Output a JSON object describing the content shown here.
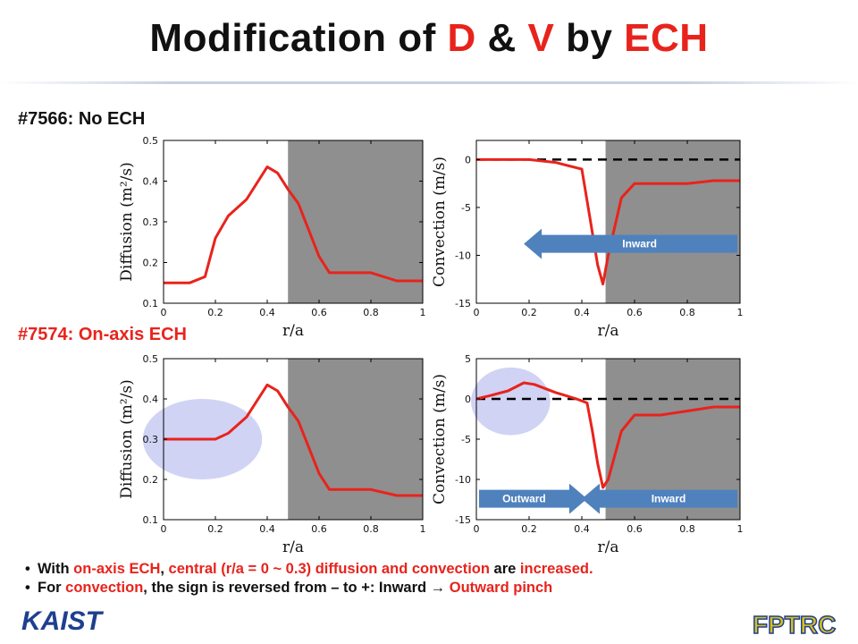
{
  "title": {
    "prefix": "Modification of ",
    "d": "D",
    "amp": " & ",
    "v": "V",
    "by": " by ",
    "ech": "ECH"
  },
  "sections": {
    "top_label": "#7566: No ECH",
    "bottom_label": "#7574: On-axis ECH"
  },
  "colors": {
    "curve": "#e8231c",
    "shade": "#8f8f8f",
    "arrow": "#4f81bd",
    "ellipse": "#c8cbf2",
    "accent": "#e8231c"
  },
  "chart_data": [
    {
      "id": "top-diffusion",
      "type": "line",
      "xlabel": "r/a",
      "ylabel": "Diffusion (m²/s)",
      "xlim": [
        0,
        1
      ],
      "ylim": [
        0.1,
        0.5
      ],
      "xticks": [
        "0",
        "0.2",
        "0.4",
        "0.6",
        "0.8",
        "1"
      ],
      "yticks": [
        "0.1",
        "0.2",
        "0.3",
        "0.4",
        "0.5"
      ],
      "shaded_from": 0.48,
      "series": [
        {
          "x": [
            0,
            0.1,
            0.16,
            0.2,
            0.25,
            0.32,
            0.4,
            0.44,
            0.48,
            0.52,
            0.56,
            0.6,
            0.64,
            0.7,
            0.8,
            0.9,
            1.0
          ],
          "y": [
            0.15,
            0.15,
            0.165,
            0.26,
            0.315,
            0.355,
            0.435,
            0.42,
            0.38,
            0.345,
            0.28,
            0.215,
            0.175,
            0.175,
            0.175,
            0.155,
            0.155
          ]
        }
      ],
      "zero_line": false,
      "arrows": [],
      "highlight": false
    },
    {
      "id": "top-convection",
      "type": "line",
      "xlabel": "r/a",
      "ylabel": "Convection (m/s)",
      "xlim": [
        0,
        1
      ],
      "ylim": [
        -15,
        2
      ],
      "xticks": [
        "0",
        "0.2",
        "0.4",
        "0.6",
        "0.8",
        "1"
      ],
      "yticks": [
        "0",
        "-5",
        "-10",
        "-15"
      ],
      "shaded_from": 0.49,
      "series": [
        {
          "x": [
            0,
            0.1,
            0.2,
            0.3,
            0.4,
            0.43,
            0.46,
            0.48,
            0.5,
            0.55,
            0.6,
            0.7,
            0.8,
            0.9,
            1.0
          ],
          "y": [
            0,
            0,
            0,
            -0.3,
            -1,
            -6,
            -11,
            -13,
            -10,
            -4,
            -2.5,
            -2.5,
            -2.5,
            -2.2,
            -2.2
          ]
        }
      ],
      "zero_line": true,
      "arrows": [
        {
          "label": "Inward",
          "dir": "left",
          "x0": 0.18,
          "x1": 0.99,
          "y": -8.8
        }
      ],
      "highlight": false
    },
    {
      "id": "bottom-diffusion",
      "type": "line",
      "xlabel": "r/a",
      "ylabel": "Diffusion (m²/s)",
      "xlim": [
        0,
        1
      ],
      "ylim": [
        0.1,
        0.5
      ],
      "xticks": [
        "0",
        "0.2",
        "0.4",
        "0.6",
        "0.8",
        "1"
      ],
      "yticks": [
        "0.1",
        "0.2",
        "0.3",
        "0.4",
        "0.5"
      ],
      "shaded_from": 0.48,
      "series": [
        {
          "x": [
            0,
            0.1,
            0.2,
            0.25,
            0.32,
            0.4,
            0.44,
            0.48,
            0.52,
            0.56,
            0.6,
            0.64,
            0.7,
            0.8,
            0.9,
            1.0
          ],
          "y": [
            0.3,
            0.3,
            0.3,
            0.315,
            0.355,
            0.435,
            0.42,
            0.38,
            0.345,
            0.28,
            0.215,
            0.175,
            0.175,
            0.175,
            0.16,
            0.16
          ]
        }
      ],
      "zero_line": false,
      "arrows": [],
      "highlight": {
        "cx": 0.15,
        "cy": 0.3,
        "rx": 0.23,
        "ry": 0.1
      }
    },
    {
      "id": "bottom-convection",
      "type": "line",
      "xlabel": "r/a",
      "ylabel": "Convection (m/s)",
      "xlim": [
        0,
        1
      ],
      "ylim": [
        -15,
        5
      ],
      "xticks": [
        "0",
        "0.2",
        "0.4",
        "0.6",
        "0.8",
        "1"
      ],
      "yticks": [
        "5",
        "0",
        "-5",
        "-10",
        "-15"
      ],
      "shaded_from": 0.49,
      "series": [
        {
          "x": [
            0,
            0.05,
            0.12,
            0.18,
            0.22,
            0.3,
            0.38,
            0.42,
            0.44,
            0.46,
            0.48,
            0.5,
            0.55,
            0.6,
            0.7,
            0.8,
            0.9,
            1.0
          ],
          "y": [
            0,
            0.4,
            1,
            2,
            1.8,
            0.8,
            0,
            -0.5,
            -4,
            -8,
            -11,
            -10,
            -4,
            -2,
            -2,
            -1.5,
            -1,
            -1
          ]
        }
      ],
      "zero_line": true,
      "arrows": [
        {
          "label": "Outward",
          "dir": "right",
          "x0": 0.01,
          "x1": 0.42,
          "y": -12.4
        },
        {
          "label": "Inward",
          "dir": "left",
          "x0": 0.4,
          "x1": 0.99,
          "y": -12.4
        }
      ],
      "highlight": {
        "cx": 0.13,
        "cy": -0.3,
        "rx": 0.15,
        "ry": 4.2
      }
    }
  ],
  "bullets": [
    [
      {
        "t": "With ",
        "red": false
      },
      {
        "t": "on-axis ECH",
        "red": true
      },
      {
        "t": ", ",
        "red": false
      },
      {
        "t": "central (r/a = 0 ~ 0.3) diffusion and convection",
        "red": true
      },
      {
        "t": " are ",
        "red": false
      },
      {
        "t": "increased.",
        "red": true
      }
    ],
    [
      {
        "t": "For ",
        "red": false
      },
      {
        "t": "convection",
        "red": true
      },
      {
        "t": ", the sign is reversed from – to +: Inward → ",
        "red": false
      },
      {
        "t": "Outward pinch",
        "red": true
      }
    ]
  ],
  "logos": {
    "kaist": "KAIST",
    "fptrc": "FPTRC"
  }
}
